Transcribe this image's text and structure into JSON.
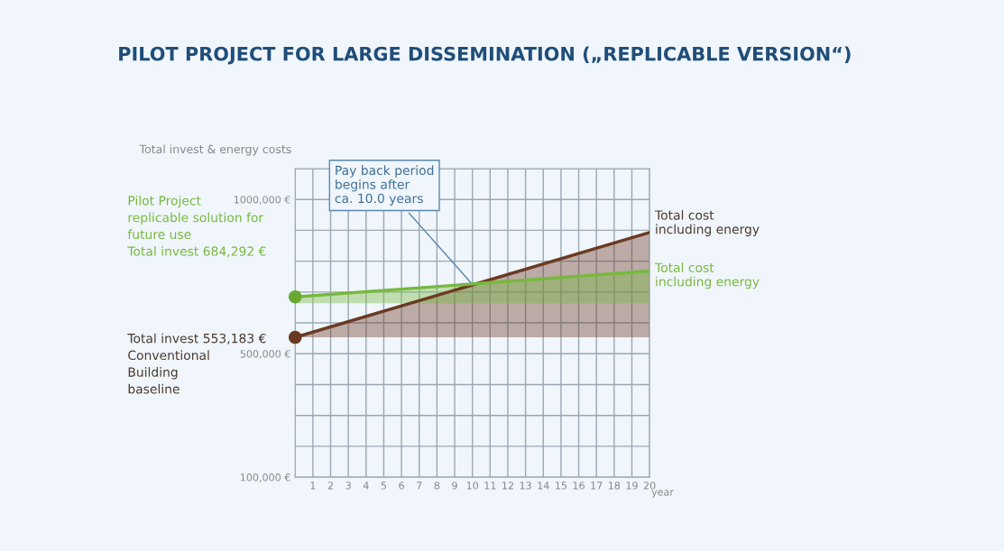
{
  "chart_data": {
    "type": "line",
    "title": "PILOT PROJECT FOR LARGE DISSEMINATION („REPLICABLE VERSION“)",
    "ylabel": "Total invest & energy costs",
    "xlabel": "year",
    "x": [
      0,
      20
    ],
    "xlim": [
      0,
      20
    ],
    "xticks": [
      {
        "value": 0,
        "label": null
      },
      1,
      2,
      3,
      4,
      5,
      6,
      7,
      8,
      9,
      10,
      11,
      12,
      13,
      14,
      15,
      16,
      17,
      18,
      19,
      20
    ],
    "ylim": [
      100000,
      1100000
    ],
    "yticks": [
      {
        "value": 100000,
        "label": "100,000 €"
      },
      {
        "value": 200000,
        "label": null
      },
      {
        "value": 300000,
        "label": null
      },
      {
        "value": 400000,
        "label": null
      },
      {
        "value": 500000,
        "label": "500,000 €"
      },
      {
        "value": 600000,
        "label": null
      },
      {
        "value": 700000,
        "label": null
      },
      {
        "value": 800000,
        "label": null
      },
      {
        "value": 900000,
        "label": null
      },
      {
        "value": 1000000,
        "label": "1000,000 €"
      },
      {
        "value": 1100000,
        "label": null
      }
    ],
    "grid": true,
    "series": [
      {
        "name": "Total cost\nincluding energy",
        "color": "#6b3a22",
        "values": [
          553183,
          893000
        ],
        "lower": [
          553183,
          553183
        ],
        "upper": [
          553183,
          893000
        ]
      },
      {
        "name": "Total cost\nincluding energy",
        "color": "#78b83e",
        "values": [
          684292,
          768000
        ],
        "lower": [
          664000,
          664000
        ],
        "upper": [
          684292,
          768000
        ]
      },
      {
        "type": "scatter",
        "color": "#66a832",
        "x": [
          0
        ],
        "values": [
          684292
        ],
        "marker": "circle"
      },
      {
        "type": "scatter",
        "color": "#6b3a22",
        "x": [
          0
        ],
        "values": [
          553183
        ],
        "marker": "circle"
      }
    ],
    "annotations": [
      {
        "text": "Pay back period\nbegins after\nca. 10.0 years",
        "x": 10,
        "y": 725000
      },
      "Pilot Project\nreplicable solution for\nfuture use\nTotal invest 684,292 €",
      "Total invest 553,183 €\nConventional\nBuilding\nbaseline"
    ]
  }
}
